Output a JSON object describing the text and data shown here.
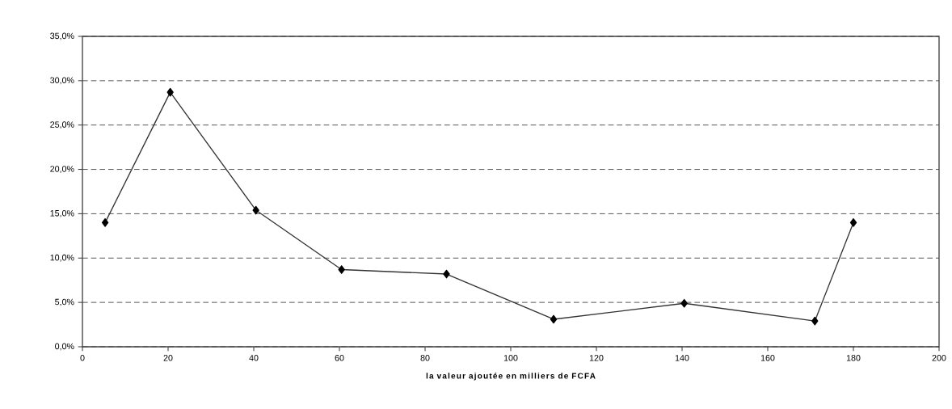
{
  "chart_data": {
    "type": "line",
    "xlabel": "la valeur ajoutée en milliers de FCFA",
    "x": [
      5.3,
      20.5,
      40.5,
      60.5,
      85,
      110,
      140.5,
      171,
      180
    ],
    "series": [
      {
        "color": "#000000",
        "values": [
          14.0,
          28.7,
          15.4,
          8.7,
          8.2,
          3.1,
          4.9,
          2.9,
          14.0
        ]
      }
    ],
    "xlim": [
      0,
      200
    ],
    "xticks": [
      0,
      20,
      40,
      60,
      80,
      100,
      120,
      140,
      160,
      180,
      200
    ],
    "ylim": [
      0,
      35
    ],
    "yticks": [
      {
        "value": 0,
        "label": "0,0%"
      },
      {
        "value": 5,
        "label": "5,0%"
      },
      {
        "value": 10,
        "label": "10,0%"
      },
      {
        "value": 15,
        "label": "15,0%"
      },
      {
        "value": 20,
        "label": "20,0%"
      },
      {
        "value": 25,
        "label": "25,0%"
      },
      {
        "value": 30,
        "label": "30,0%"
      },
      {
        "value": 35,
        "label": "35,0%"
      }
    ],
    "grid": "y",
    "marker": "diamond",
    "line_style": "solid"
  }
}
